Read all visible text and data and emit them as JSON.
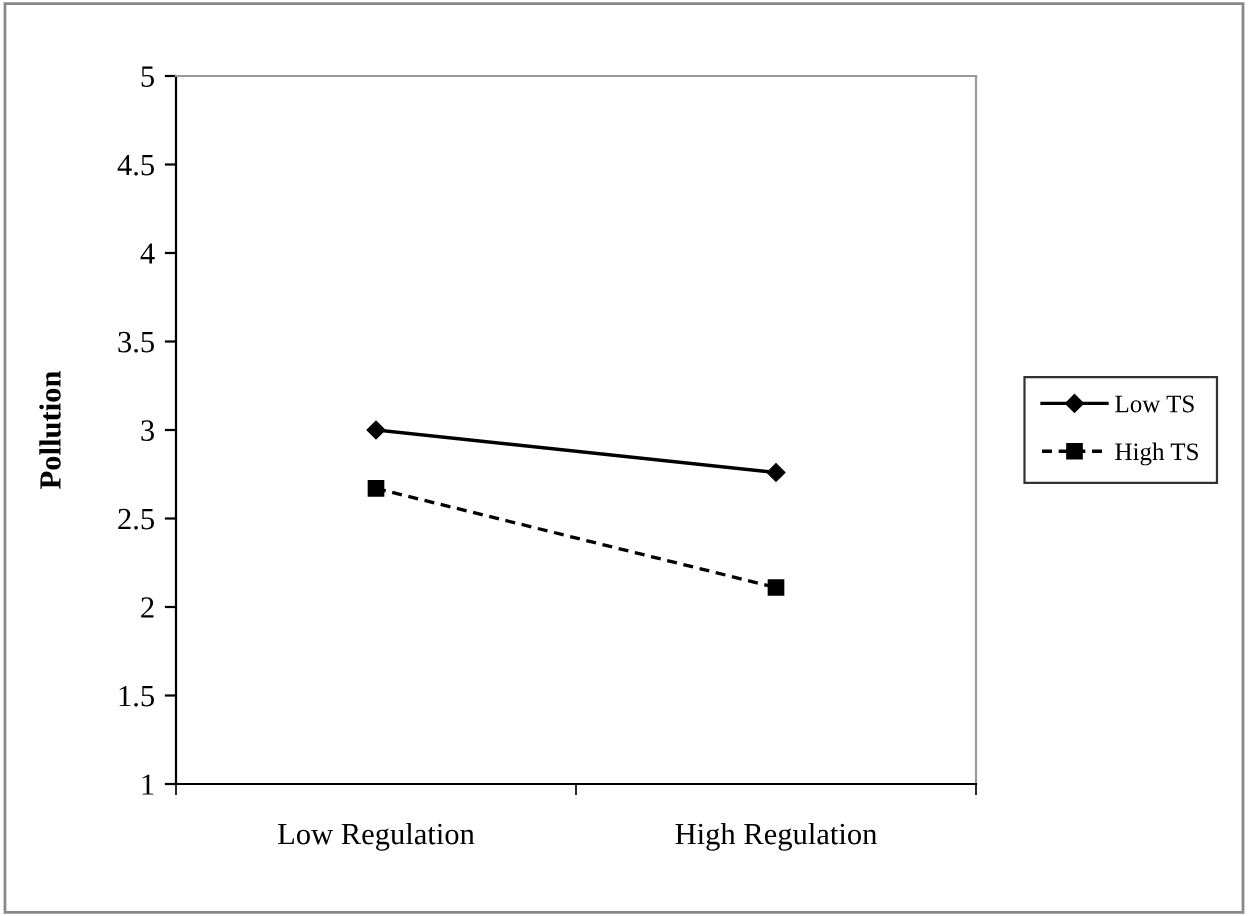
{
  "chart_data": {
    "type": "line",
    "ylabel": "Pollution",
    "categories": [
      "Low Regulation",
      "High Regulation"
    ],
    "series": [
      {
        "name": "Low TS",
        "color": "#000000",
        "values": [
          3.0,
          2.76
        ],
        "marker": "diamond",
        "line_style": "solid"
      },
      {
        "name": "High TS",
        "color": "#000000",
        "values": [
          2.67,
          2.11
        ],
        "marker": "square",
        "line_style": "dashed"
      }
    ],
    "ylim": [
      1,
      5
    ],
    "yticks": [
      1,
      1.5,
      2,
      2.5,
      3,
      3.5,
      4,
      4.5,
      5
    ],
    "grid": false,
    "legend": "right"
  }
}
